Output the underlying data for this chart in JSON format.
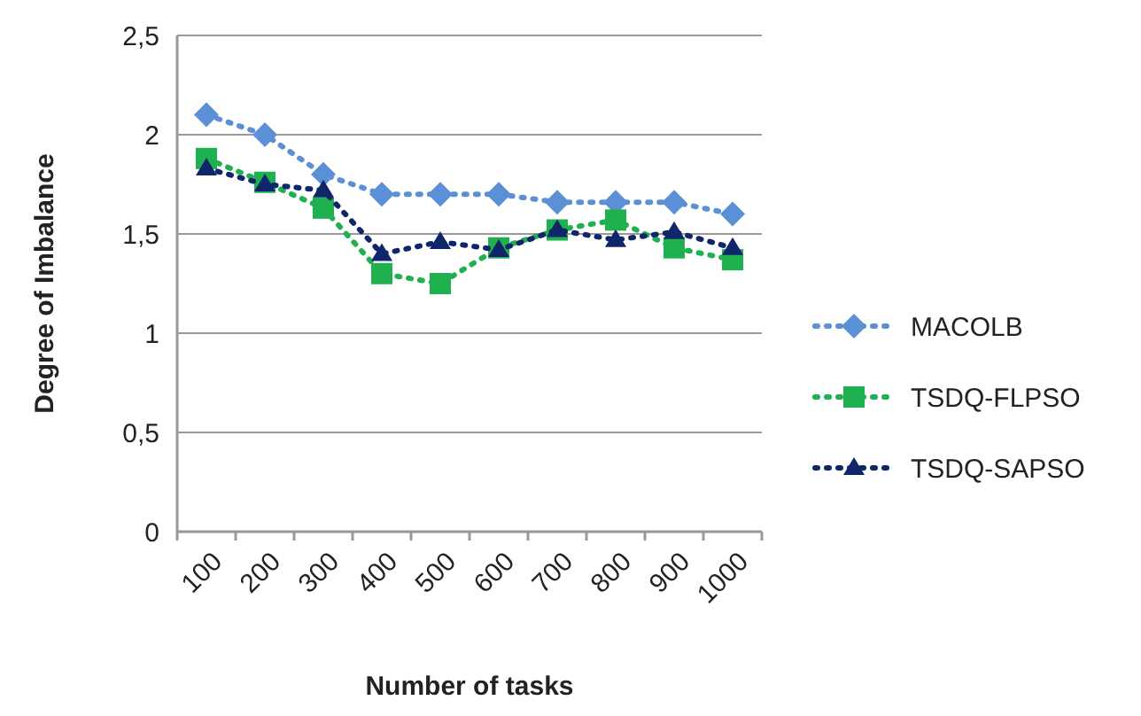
{
  "chart_data": {
    "type": "line",
    "xlabel": "Number of tasks",
    "ylabel": "Degree of Imbalance",
    "categories": [
      "100",
      "200",
      "300",
      "400",
      "500",
      "600",
      "700",
      "800",
      "900",
      "1000"
    ],
    "ylim": [
      0,
      2.5
    ],
    "yticks": [
      0,
      {
        "value": 0.5,
        "label": "0,5"
      },
      1,
      {
        "value": 1.5,
        "label": "1,5"
      },
      2,
      {
        "value": 2.5,
        "label": "2,5"
      }
    ],
    "grid": "y",
    "legend": "right",
    "line_style": "dotted",
    "series": [
      {
        "name": "MACOLB",
        "color": "#5b8fd6",
        "marker": "diamond",
        "values": [
          2.1,
          2.0,
          1.8,
          1.7,
          1.7,
          1.7,
          1.66,
          1.66,
          1.66,
          1.6
        ]
      },
      {
        "name": "TSDQ-FLPSO",
        "color": "#1fb14f",
        "marker": "square",
        "values": [
          1.88,
          1.76,
          1.63,
          1.3,
          1.25,
          1.43,
          1.52,
          1.57,
          1.43,
          1.37
        ]
      },
      {
        "name": "TSDQ-SAPSO",
        "color": "#10266a",
        "marker": "triangle",
        "values": [
          1.83,
          1.75,
          1.72,
          1.4,
          1.46,
          1.42,
          1.52,
          1.47,
          1.51,
          1.43
        ]
      }
    ]
  }
}
